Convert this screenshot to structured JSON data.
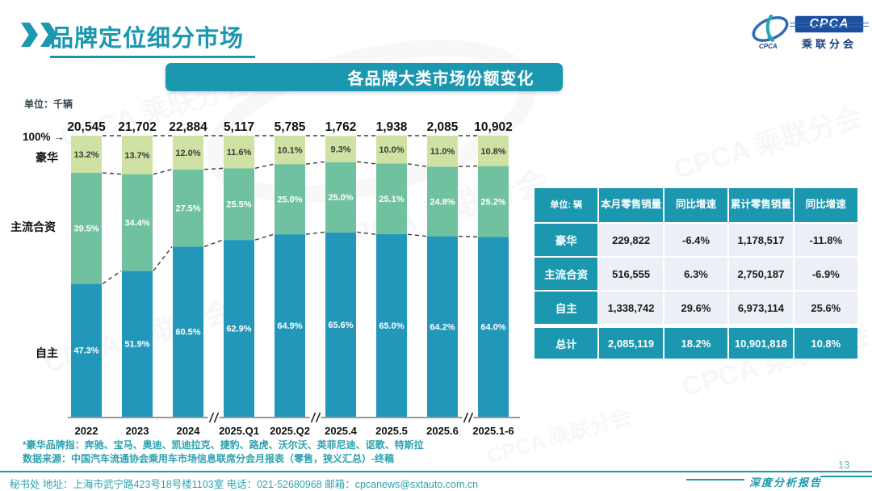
{
  "header": {
    "title": "品牌定位细分市场",
    "logo": {
      "cpca": "CPCA",
      "org": "乘联分会",
      "watermark": "CPCA 乘联分会"
    }
  },
  "banner": {
    "title": "各品牌大类市场份额变化"
  },
  "chart_data": {
    "type": "bar",
    "stacked": true,
    "title": "各品牌大类市场份额变化",
    "unit_label": "单位：千辆",
    "y_axis_label": "100% →",
    "ylim": [
      0,
      100
    ],
    "grid": false,
    "legend_position": "left-axis-labels",
    "categories": [
      "2022",
      "2023",
      "2024",
      "2025.Q1",
      "2025.Q2",
      "2025.4",
      "2025.5",
      "2025.6",
      "2025.1-6"
    ],
    "totals": [
      "20,545",
      "21,702",
      "22,884",
      "5,117",
      "5,785",
      "1,762",
      "1,938",
      "2,085",
      "10,902"
    ],
    "series": [
      {
        "name": "自主",
        "color": "#2397ba",
        "text_color": "#ffffff",
        "values": [
          47.3,
          51.9,
          60.5,
          62.9,
          64.9,
          65.6,
          65.0,
          64.2,
          64.0
        ]
      },
      {
        "name": "主流合资",
        "color": "#70c19f",
        "text_color": "#ffffff",
        "values": [
          39.5,
          34.4,
          27.5,
          25.5,
          25.0,
          25.0,
          25.1,
          24.8,
          25.2
        ]
      },
      {
        "name": "豪华",
        "color": "#cfe2a3",
        "text_color": "#3a3a3a",
        "values": [
          13.2,
          13.7,
          12.0,
          11.6,
          10.1,
          9.3,
          10.0,
          11.0,
          10.8
        ]
      }
    ],
    "axis_breaks_after": [
      2,
      4,
      7
    ]
  },
  "table": {
    "unit_header": "单位: 辆",
    "columns": [
      "本月零售销量",
      "同比增速",
      "累计零售销量",
      "同比增速"
    ],
    "rows": [
      {
        "label": "豪华",
        "values": [
          "229,822",
          "-6.4%",
          "1,178,517",
          "-11.8%"
        ]
      },
      {
        "label": "主流合资",
        "values": [
          "516,555",
          "6.3%",
          "2,750,187",
          "-6.9%"
        ]
      },
      {
        "label": "自主",
        "values": [
          "1,338,742",
          "29.6%",
          "6,973,114",
          "25.6%"
        ]
      }
    ],
    "total_row": {
      "label": "总计",
      "values": [
        "2,085,119",
        "18.2%",
        "10,901,818",
        "10.8%"
      ]
    }
  },
  "notes": {
    "line1": "*豪华品牌指：奔驰、宝马、奥迪、凯迪拉克、捷豹、路虎、沃尔沃、英菲尼迪、讴歌、特斯拉",
    "line2": "数据来源：中国汽车流通协会乘用车市场信息联席分会月报表（零售，狭义汇总）-终稿"
  },
  "footer": {
    "left": "秘书处  地址：上海市武宁路423号18号楼1103室  电话：021-52680968  邮箱：cpcanews@sxtauto.com.cn",
    "report_label": "深度分析报告",
    "page": "13"
  },
  "colors": {
    "accent_teal": "#1b98af",
    "navy": "#1d4f9e",
    "note_teal": "#2ba2b0"
  }
}
